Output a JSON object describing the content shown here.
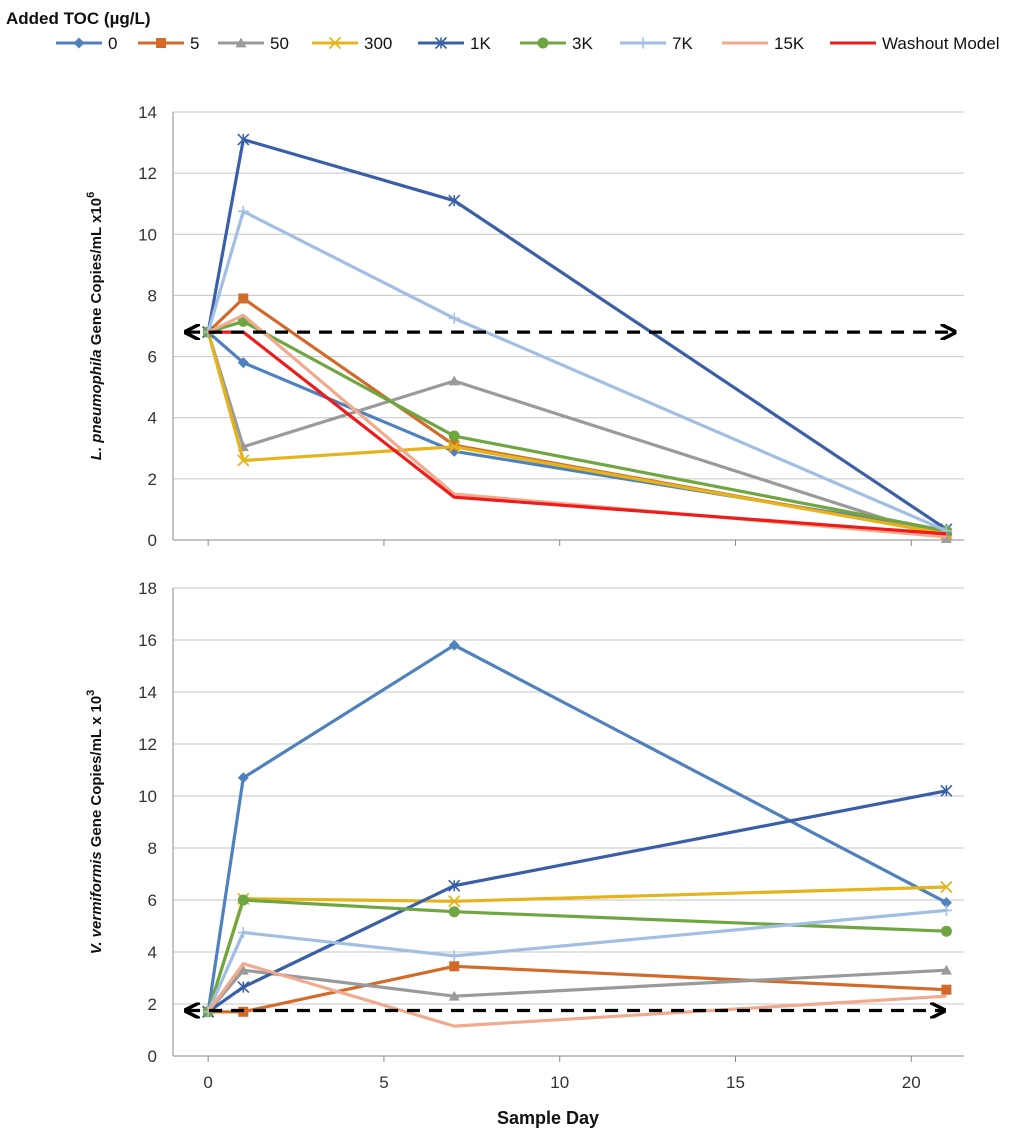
{
  "legend": {
    "title": "Added TOC (µg/L)",
    "items": [
      {
        "label": "0",
        "color": "#4E81BD",
        "marker": "diamond"
      },
      {
        "label": "5",
        "color": "#D26B2A",
        "marker": "square"
      },
      {
        "label": "50",
        "color": "#9A9A9A",
        "marker": "triangle"
      },
      {
        "label": "300",
        "color": "#E5B31A",
        "marker": "x"
      },
      {
        "label": "1K",
        "color": "#3A5FA8",
        "marker": "star"
      },
      {
        "label": "3K",
        "color": "#6FA642",
        "marker": "circle"
      },
      {
        "label": "7K",
        "color": "#A2BEE3",
        "marker": "plus"
      },
      {
        "label": "15K",
        "color": "#F2AA8E",
        "marker": "none"
      },
      {
        "label": "Washout Model",
        "color": "#EE1B1B",
        "marker": "none"
      }
    ]
  },
  "xlabel": "Sample Day",
  "chart_data": [
    {
      "type": "line",
      "ylabel_italic": "L. pneumophila",
      "ylabel_rest": " Gene Copies/mL x10",
      "ylabel_sup": "6",
      "xlim": [
        -1,
        21.5
      ],
      "ylim": [
        0,
        14
      ],
      "yticks": [
        0,
        2,
        4,
        6,
        8,
        10,
        12,
        14
      ],
      "xticks": [
        0,
        5,
        10,
        15,
        20
      ],
      "show_xtick_labels": false,
      "grid": true,
      "reference_line": {
        "value": 6.8,
        "from": -0.6,
        "to": 21.2,
        "style": "dashed",
        "arrows": "both"
      },
      "series": [
        {
          "name": "0",
          "x": [
            0,
            1,
            7,
            21
          ],
          "y": [
            6.8,
            5.8,
            2.9,
            0.3
          ]
        },
        {
          "name": "5",
          "x": [
            0,
            1,
            7,
            21
          ],
          "y": [
            6.8,
            7.9,
            3.1,
            0.2
          ]
        },
        {
          "name": "50",
          "x": [
            0,
            1,
            7,
            21
          ],
          "y": [
            6.8,
            3.05,
            5.2,
            0.05
          ]
        },
        {
          "name": "300",
          "x": [
            0,
            1,
            7,
            21
          ],
          "y": [
            6.8,
            2.6,
            3.05,
            0.2
          ]
        },
        {
          "name": "1K",
          "x": [
            0,
            1,
            7,
            21
          ],
          "y": [
            6.8,
            13.1,
            11.1,
            0.35
          ]
        },
        {
          "name": "3K",
          "x": [
            0,
            1,
            7,
            21
          ],
          "y": [
            6.8,
            7.15,
            3.4,
            0.3
          ]
        },
        {
          "name": "7K",
          "x": [
            0,
            1,
            7,
            21
          ],
          "y": [
            6.8,
            10.75,
            7.25,
            0.3
          ]
        },
        {
          "name": "15K",
          "x": [
            0,
            1,
            7,
            21
          ],
          "y": [
            6.8,
            7.35,
            1.5,
            0.1
          ]
        },
        {
          "name": "Washout Model",
          "x": [
            0,
            1,
            7,
            21
          ],
          "y": [
            6.8,
            6.8,
            1.4,
            0.2
          ]
        }
      ]
    },
    {
      "type": "line",
      "ylabel_italic": "V. vermiformis",
      "ylabel_rest": " Gene Copies/mL x 10",
      "ylabel_sup": "3",
      "xlim": [
        -1,
        21.5
      ],
      "ylim": [
        0,
        18
      ],
      "yticks": [
        0,
        2,
        4,
        6,
        8,
        10,
        12,
        14,
        16,
        18
      ],
      "xticks": [
        0,
        5,
        10,
        15,
        20
      ],
      "show_xtick_labels": true,
      "grid": true,
      "reference_line": {
        "value": 1.75,
        "from": -0.6,
        "to": 20.9,
        "style": "dashed",
        "arrows": "both"
      },
      "series": [
        {
          "name": "0",
          "x": [
            0,
            1,
            7,
            21
          ],
          "y": [
            1.7,
            10.7,
            15.8,
            5.9
          ]
        },
        {
          "name": "5",
          "x": [
            0,
            1,
            7,
            21
          ],
          "y": [
            1.7,
            1.7,
            3.45,
            2.55
          ]
        },
        {
          "name": "50",
          "x": [
            0,
            1,
            7,
            21
          ],
          "y": [
            1.7,
            3.3,
            2.3,
            3.3
          ]
        },
        {
          "name": "300",
          "x": [
            0,
            1,
            7,
            21
          ],
          "y": [
            1.7,
            6.05,
            5.95,
            6.5
          ]
        },
        {
          "name": "1K",
          "x": [
            0,
            1,
            7,
            21
          ],
          "y": [
            1.7,
            2.65,
            6.55,
            10.2
          ]
        },
        {
          "name": "3K",
          "x": [
            0,
            1,
            7,
            21
          ],
          "y": [
            1.7,
            6.0,
            5.55,
            4.8
          ]
        },
        {
          "name": "7K",
          "x": [
            0,
            1,
            7,
            21
          ],
          "y": [
            1.7,
            4.75,
            3.85,
            5.6
          ]
        },
        {
          "name": "15K",
          "x": [
            0,
            1,
            7,
            21
          ],
          "y": [
            1.7,
            3.55,
            1.15,
            2.3
          ]
        }
      ]
    }
  ]
}
